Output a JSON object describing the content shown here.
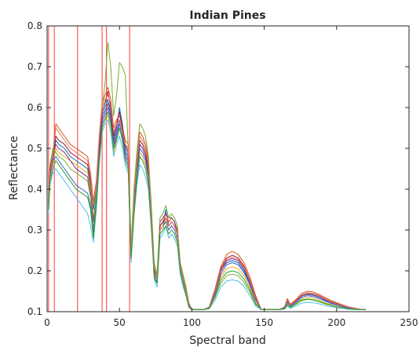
{
  "chart_data": {
    "type": "line",
    "title": "Indian Pines",
    "xlabel": "Spectral band",
    "ylabel": "Reflectance",
    "xlim": [
      0,
      250
    ],
    "ylim": [
      0.1,
      0.8
    ],
    "xticks": [
      0,
      50,
      100,
      150,
      200,
      250
    ],
    "yticks": [
      0.1,
      0.2,
      0.3,
      0.4,
      0.5,
      0.6,
      0.7,
      0.8
    ],
    "xtick_labels": [
      "0",
      "50",
      "100",
      "150",
      "200",
      "250"
    ],
    "ytick_labels": [
      "0.1",
      "0.2",
      "0.3",
      "0.4",
      "0.5",
      "0.6",
      "0.7",
      "0.8"
    ],
    "grid": false,
    "vertical_markers": {
      "color": "#ff5a5a",
      "x": [
        1,
        5,
        21,
        38,
        41,
        57
      ]
    },
    "x": [
      1,
      2,
      4,
      6,
      8,
      12,
      16,
      20,
      24,
      28,
      30,
      32,
      34,
      36,
      38,
      40,
      42,
      44,
      46,
      48,
      50,
      52,
      54,
      56,
      58,
      60,
      62,
      64,
      66,
      68,
      70,
      72,
      74,
      76,
      78,
      80,
      82,
      84,
      86,
      88,
      90,
      92,
      94,
      96,
      98,
      100,
      104,
      108,
      112,
      116,
      120,
      124,
      128,
      132,
      136,
      140,
      144,
      148,
      152,
      156,
      160,
      164,
      166,
      168,
      170,
      172,
      174,
      176,
      180,
      184,
      188,
      192,
      196,
      200,
      204,
      208,
      212,
      216,
      220
    ],
    "series": [
      {
        "color": "#0072bd",
        "values": [
          0.36,
          0.44,
          0.47,
          0.52,
          0.51,
          0.5,
          0.48,
          0.47,
          0.46,
          0.45,
          0.41,
          0.35,
          0.4,
          0.5,
          0.58,
          0.6,
          0.62,
          0.59,
          0.52,
          0.55,
          0.6,
          0.56,
          0.5,
          0.48,
          0.24,
          0.36,
          0.44,
          0.51,
          0.5,
          0.48,
          0.44,
          0.33,
          0.2,
          0.18,
          0.3,
          0.31,
          0.35,
          0.31,
          0.32,
          0.31,
          0.29,
          0.21,
          0.18,
          0.15,
          0.12,
          0.105,
          0.105,
          0.105,
          0.11,
          0.15,
          0.2,
          0.22,
          0.225,
          0.22,
          0.2,
          0.17,
          0.13,
          0.105,
          0.105,
          0.105,
          0.105,
          0.11,
          0.125,
          0.115,
          0.12,
          0.125,
          0.132,
          0.138,
          0.142,
          0.14,
          0.135,
          0.128,
          0.122,
          0.118,
          0.114,
          0.11,
          0.108,
          0.105,
          0.105
        ]
      },
      {
        "color": "#d95319",
        "values": [
          0.37,
          0.45,
          0.49,
          0.56,
          0.55,
          0.53,
          0.51,
          0.5,
          0.49,
          0.48,
          0.44,
          0.37,
          0.42,
          0.53,
          0.61,
          0.63,
          0.65,
          0.62,
          0.55,
          0.57,
          0.58,
          0.55,
          0.52,
          0.51,
          0.25,
          0.38,
          0.47,
          0.54,
          0.53,
          0.51,
          0.47,
          0.35,
          0.21,
          0.19,
          0.31,
          0.32,
          0.34,
          0.32,
          0.33,
          0.32,
          0.3,
          0.22,
          0.19,
          0.16,
          0.12,
          0.105,
          0.105,
          0.105,
          0.112,
          0.155,
          0.21,
          0.24,
          0.248,
          0.24,
          0.22,
          0.185,
          0.14,
          0.105,
          0.105,
          0.105,
          0.105,
          0.112,
          0.132,
          0.118,
          0.124,
          0.13,
          0.138,
          0.145,
          0.15,
          0.148,
          0.142,
          0.135,
          0.128,
          0.122,
          0.117,
          0.112,
          0.109,
          0.106,
          0.105
        ]
      },
      {
        "color": "#edb120",
        "values": [
          0.35,
          0.43,
          0.46,
          0.5,
          0.49,
          0.48,
          0.47,
          0.46,
          0.45,
          0.44,
          0.4,
          0.33,
          0.38,
          0.47,
          0.55,
          0.57,
          0.58,
          0.55,
          0.49,
          0.52,
          0.55,
          0.52,
          0.48,
          0.46,
          0.23,
          0.35,
          0.43,
          0.49,
          0.48,
          0.46,
          0.42,
          0.32,
          0.19,
          0.17,
          0.29,
          0.3,
          0.33,
          0.3,
          0.31,
          0.3,
          0.28,
          0.2,
          0.17,
          0.14,
          0.115,
          0.105,
          0.105,
          0.105,
          0.108,
          0.14,
          0.185,
          0.205,
          0.21,
          0.205,
          0.188,
          0.16,
          0.122,
          0.105,
          0.105,
          0.105,
          0.105,
          0.108,
          0.12,
          0.112,
          0.116,
          0.12,
          0.126,
          0.131,
          0.135,
          0.133,
          0.128,
          0.122,
          0.117,
          0.113,
          0.11,
          0.108,
          0.106,
          0.105,
          0.105
        ]
      },
      {
        "color": "#7e2f8e",
        "values": [
          0.36,
          0.44,
          0.48,
          0.51,
          0.5,
          0.49,
          0.47,
          0.45,
          0.44,
          0.43,
          0.39,
          0.32,
          0.39,
          0.49,
          0.57,
          0.59,
          0.61,
          0.58,
          0.51,
          0.54,
          0.57,
          0.54,
          0.49,
          0.47,
          0.24,
          0.36,
          0.45,
          0.51,
          0.5,
          0.48,
          0.44,
          0.33,
          0.2,
          0.18,
          0.32,
          0.33,
          0.34,
          0.33,
          0.33,
          0.32,
          0.29,
          0.21,
          0.18,
          0.15,
          0.12,
          0.105,
          0.105,
          0.105,
          0.11,
          0.148,
          0.198,
          0.225,
          0.23,
          0.225,
          0.205,
          0.172,
          0.132,
          0.105,
          0.105,
          0.105,
          0.105,
          0.11,
          0.126,
          0.116,
          0.121,
          0.126,
          0.133,
          0.139,
          0.143,
          0.141,
          0.136,
          0.129,
          0.123,
          0.118,
          0.114,
          0.11,
          0.108,
          0.105,
          0.105
        ]
      },
      {
        "color": "#77ac30",
        "values": [
          0.38,
          0.46,
          0.5,
          0.49,
          0.48,
          0.47,
          0.45,
          0.44,
          0.43,
          0.42,
          0.38,
          0.3,
          0.4,
          0.52,
          0.6,
          0.66,
          0.76,
          0.7,
          0.58,
          0.63,
          0.71,
          0.7,
          0.68,
          0.5,
          0.26,
          0.4,
          0.49,
          0.56,
          0.55,
          0.53,
          0.48,
          0.36,
          0.22,
          0.19,
          0.33,
          0.34,
          0.36,
          0.33,
          0.34,
          0.33,
          0.31,
          0.22,
          0.19,
          0.16,
          0.12,
          0.105,
          0.105,
          0.105,
          0.108,
          0.135,
          0.17,
          0.188,
          0.192,
          0.188,
          0.172,
          0.148,
          0.118,
          0.105,
          0.105,
          0.105,
          0.105,
          0.107,
          0.118,
          0.11,
          0.114,
          0.118,
          0.123,
          0.127,
          0.13,
          0.128,
          0.124,
          0.119,
          0.115,
          0.112,
          0.109,
          0.107,
          0.106,
          0.105,
          0.105
        ]
      },
      {
        "color": "#4dbeee",
        "values": [
          0.34,
          0.41,
          0.44,
          0.45,
          0.44,
          0.42,
          0.4,
          0.38,
          0.36,
          0.34,
          0.31,
          0.27,
          0.35,
          0.46,
          0.54,
          0.56,
          0.57,
          0.54,
          0.48,
          0.51,
          0.53,
          0.5,
          0.46,
          0.44,
          0.22,
          0.33,
          0.41,
          0.46,
          0.45,
          0.43,
          0.4,
          0.3,
          0.18,
          0.16,
          0.28,
          0.29,
          0.31,
          0.28,
          0.29,
          0.28,
          0.26,
          0.19,
          0.16,
          0.14,
          0.11,
          0.105,
          0.105,
          0.105,
          0.107,
          0.128,
          0.16,
          0.175,
          0.178,
          0.175,
          0.162,
          0.14,
          0.114,
          0.105,
          0.105,
          0.105,
          0.105,
          0.106,
          0.114,
          0.108,
          0.111,
          0.114,
          0.118,
          0.121,
          0.123,
          0.122,
          0.119,
          0.115,
          0.112,
          0.11,
          0.108,
          0.106,
          0.105,
          0.105,
          0.105
        ]
      },
      {
        "color": "#a2142f",
        "values": [
          0.37,
          0.45,
          0.48,
          0.53,
          0.52,
          0.51,
          0.49,
          0.48,
          0.47,
          0.46,
          0.42,
          0.36,
          0.41,
          0.51,
          0.59,
          0.61,
          0.64,
          0.6,
          0.53,
          0.56,
          0.59,
          0.55,
          0.51,
          0.49,
          0.24,
          0.37,
          0.46,
          0.52,
          0.51,
          0.49,
          0.45,
          0.34,
          0.2,
          0.18,
          0.31,
          0.32,
          0.33,
          0.31,
          0.32,
          0.31,
          0.29,
          0.21,
          0.18,
          0.15,
          0.12,
          0.105,
          0.105,
          0.105,
          0.111,
          0.152,
          0.205,
          0.232,
          0.238,
          0.232,
          0.212,
          0.178,
          0.136,
          0.105,
          0.105,
          0.105,
          0.105,
          0.111,
          0.129,
          0.117,
          0.122,
          0.128,
          0.135,
          0.141,
          0.146,
          0.144,
          0.139,
          0.132,
          0.125,
          0.12,
          0.115,
          0.111,
          0.108,
          0.105,
          0.105
        ]
      },
      {
        "color": "#3a5fcd",
        "values": [
          0.35,
          0.43,
          0.47,
          0.48,
          0.47,
          0.45,
          0.43,
          0.41,
          0.4,
          0.39,
          0.36,
          0.29,
          0.37,
          0.48,
          0.56,
          0.58,
          0.6,
          0.57,
          0.5,
          0.53,
          0.56,
          0.53,
          0.48,
          0.46,
          0.23,
          0.35,
          0.44,
          0.5,
          0.49,
          0.47,
          0.43,
          0.32,
          0.19,
          0.17,
          0.3,
          0.31,
          0.32,
          0.3,
          0.31,
          0.3,
          0.28,
          0.2,
          0.17,
          0.14,
          0.115,
          0.105,
          0.105,
          0.105,
          0.109,
          0.144,
          0.192,
          0.215,
          0.22,
          0.215,
          0.196,
          0.166,
          0.128,
          0.105,
          0.105,
          0.105,
          0.105,
          0.109,
          0.123,
          0.114,
          0.118,
          0.123,
          0.129,
          0.135,
          0.139,
          0.137,
          0.132,
          0.126,
          0.12,
          0.116,
          0.112,
          0.109,
          0.107,
          0.105,
          0.105
        ]
      },
      {
        "color": "#e07a5f",
        "values": [
          0.36,
          0.44,
          0.48,
          0.55,
          0.54,
          0.52,
          0.5,
          0.49,
          0.48,
          0.47,
          0.43,
          0.36,
          0.41,
          0.52,
          0.6,
          0.62,
          0.63,
          0.61,
          0.54,
          0.56,
          0.57,
          0.54,
          0.51,
          0.5,
          0.25,
          0.37,
          0.46,
          0.53,
          0.52,
          0.5,
          0.46,
          0.34,
          0.21,
          0.18,
          0.3,
          0.31,
          0.33,
          0.31,
          0.32,
          0.31,
          0.29,
          0.21,
          0.18,
          0.15,
          0.12,
          0.105,
          0.105,
          0.105,
          0.111,
          0.15,
          0.202,
          0.228,
          0.234,
          0.228,
          0.208,
          0.176,
          0.134,
          0.105,
          0.105,
          0.105,
          0.105,
          0.111,
          0.128,
          0.117,
          0.122,
          0.127,
          0.134,
          0.14,
          0.145,
          0.143,
          0.138,
          0.131,
          0.124,
          0.119,
          0.115,
          0.111,
          0.108,
          0.105,
          0.105
        ]
      },
      {
        "color": "#2ca02c",
        "values": [
          0.35,
          0.42,
          0.45,
          0.47,
          0.46,
          0.44,
          0.42,
          0.4,
          0.39,
          0.38,
          0.35,
          0.28,
          0.36,
          0.47,
          0.55,
          0.57,
          0.59,
          0.56,
          0.5,
          0.52,
          0.55,
          0.52,
          0.47,
          0.45,
          0.23,
          0.34,
          0.42,
          0.48,
          0.47,
          0.45,
          0.41,
          0.31,
          0.18,
          0.17,
          0.29,
          0.3,
          0.31,
          0.29,
          0.3,
          0.29,
          0.27,
          0.2,
          0.17,
          0.14,
          0.11,
          0.105,
          0.105,
          0.105,
          0.108,
          0.138,
          0.178,
          0.196,
          0.2,
          0.196,
          0.18,
          0.154,
          0.12,
          0.105,
          0.105,
          0.105,
          0.105,
          0.107,
          0.117,
          0.111,
          0.115,
          0.119,
          0.124,
          0.128,
          0.131,
          0.129,
          0.125,
          0.12,
          0.116,
          0.112,
          0.109,
          0.107,
          0.106,
          0.105,
          0.105
        ]
      }
    ]
  }
}
